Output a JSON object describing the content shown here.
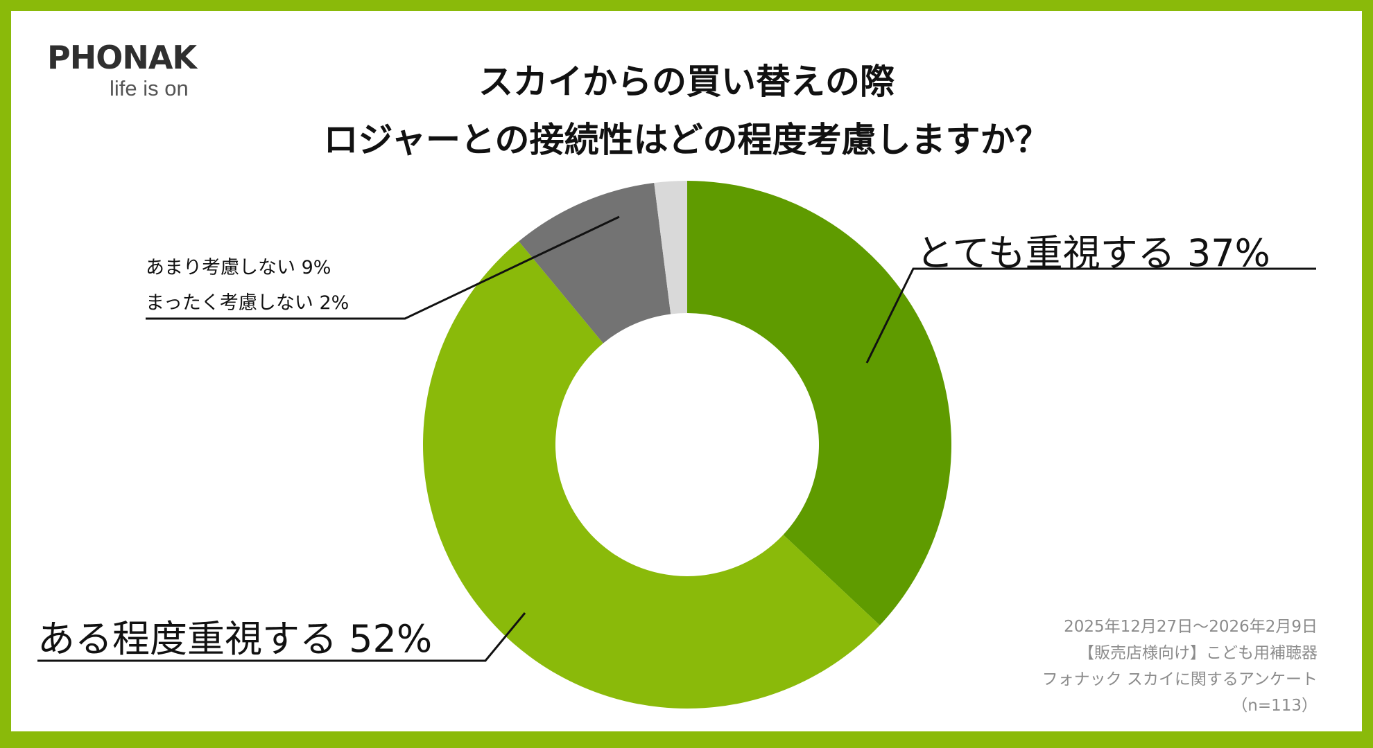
{
  "brand": {
    "logo_text": "PHONAK",
    "tagline": "life is on"
  },
  "title": {
    "line1": "スカイからの買い替えの際",
    "line2": "ロジャーとの接続性はどの程度考慮しますか？"
  },
  "labels": {
    "very_important": "とても重視する 37%",
    "somewhat_important": "ある程度重視する 52%",
    "not_much": "あまり考慮しない 9%",
    "not_at_all": "まったく考慮しない 2%"
  },
  "footnote": {
    "period": "2025年12月27日～2026年2月9日",
    "audience": "【販売店様向け】こども用補聴器",
    "survey": "フォナック スカイに関するアンケート",
    "sample": "（n=113）"
  },
  "chart_data": {
    "type": "pie",
    "variant": "donut",
    "title": "スカイからの買い替えの際 ロジャーとの接続性はどの程度考慮しますか？",
    "categories": [
      "とても重視する",
      "ある程度重視する",
      "あまり考慮しない",
      "まったく考慮しない"
    ],
    "values": [
      37,
      52,
      9,
      2
    ],
    "unit": "%",
    "colors": [
      "#5f9b00",
      "#8aba0a",
      "#737373",
      "#d9d9d9"
    ],
    "n": 113,
    "start": "12 o'clock",
    "direction": "clockwise"
  }
}
